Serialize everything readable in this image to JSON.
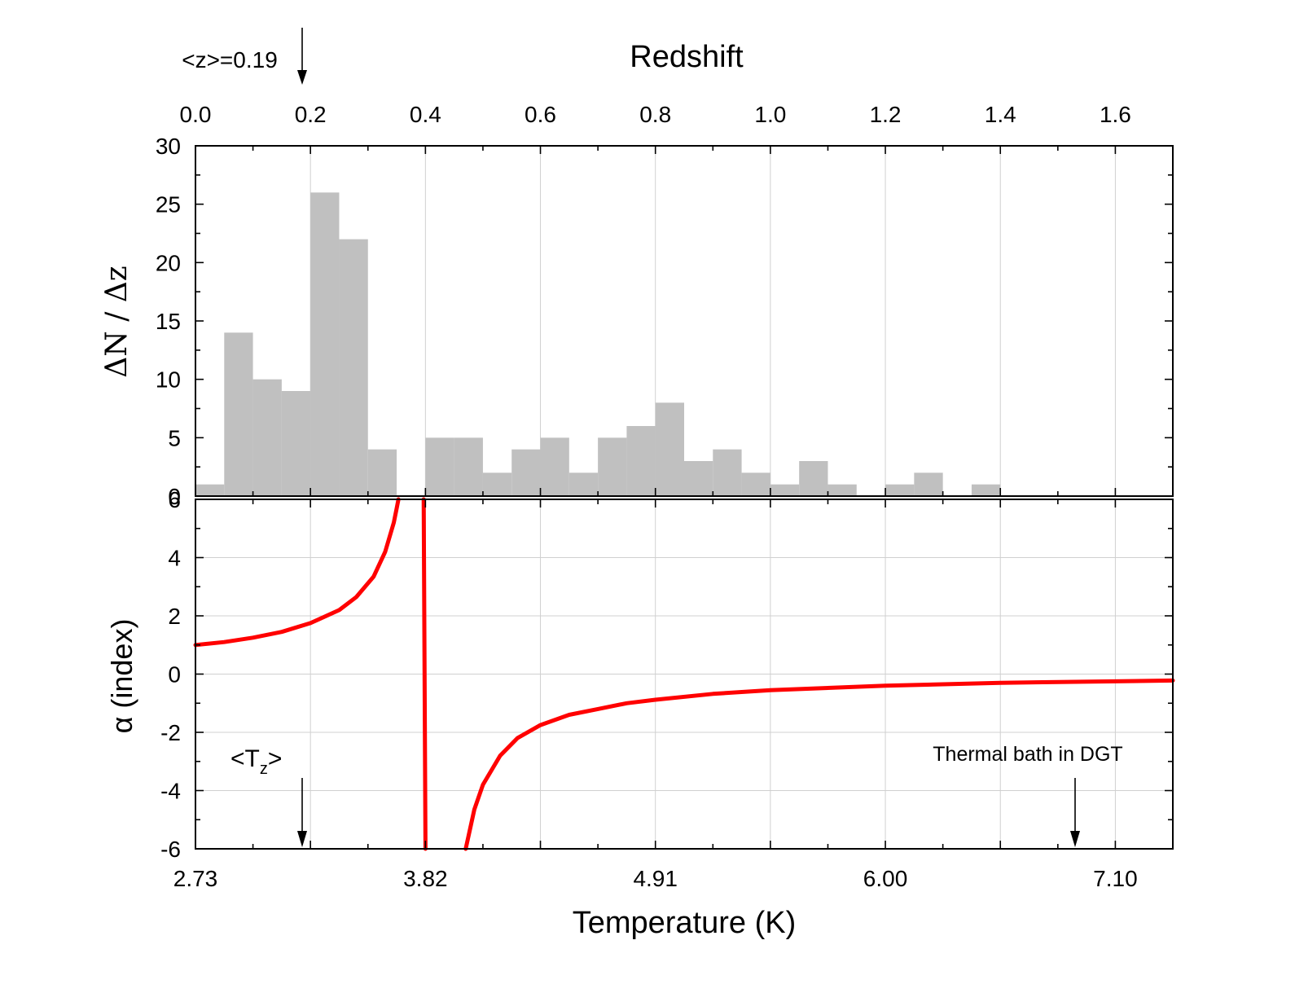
{
  "chart_data": [
    {
      "type": "bar",
      "panel": "top",
      "title": "Redshift",
      "xlabel": "Redshift",
      "ylabel": "ΔN / Δz",
      "xlim": [
        0.0,
        1.7
      ],
      "ylim": [
        0,
        30
      ],
      "bin_width": 0.05,
      "x_ticks": [
        "0.0",
        "0.2",
        "0.4",
        "0.6",
        "0.8",
        "1.0",
        "1.2",
        "1.4",
        "1.6"
      ],
      "y_ticks": [
        "0",
        "5",
        "10",
        "15",
        "20",
        "25",
        "30"
      ],
      "bins": [
        {
          "start": 0.0,
          "value": 1
        },
        {
          "start": 0.05,
          "value": 14
        },
        {
          "start": 0.1,
          "value": 10
        },
        {
          "start": 0.15,
          "value": 9
        },
        {
          "start": 0.2,
          "value": 26
        },
        {
          "start": 0.25,
          "value": 22
        },
        {
          "start": 0.3,
          "value": 4
        },
        {
          "start": 0.35,
          "value": 0
        },
        {
          "start": 0.4,
          "value": 5
        },
        {
          "start": 0.45,
          "value": 5
        },
        {
          "start": 0.5,
          "value": 2
        },
        {
          "start": 0.55,
          "value": 4
        },
        {
          "start": 0.6,
          "value": 5
        },
        {
          "start": 0.65,
          "value": 2
        },
        {
          "start": 0.7,
          "value": 5
        },
        {
          "start": 0.75,
          "value": 6
        },
        {
          "start": 0.8,
          "value": 8
        },
        {
          "start": 0.85,
          "value": 3
        },
        {
          "start": 0.9,
          "value": 4
        },
        {
          "start": 0.95,
          "value": 2
        },
        {
          "start": 1.0,
          "value": 1
        },
        {
          "start": 1.05,
          "value": 3
        },
        {
          "start": 1.1,
          "value": 1
        },
        {
          "start": 1.15,
          "value": 0
        },
        {
          "start": 1.2,
          "value": 1
        },
        {
          "start": 1.25,
          "value": 2
        },
        {
          "start": 1.3,
          "value": 0
        },
        {
          "start": 1.35,
          "value": 1
        }
      ],
      "annotation": {
        "text": "<z>=0.19",
        "x": 0.19
      }
    },
    {
      "type": "line",
      "panel": "bottom",
      "xlabel": "Temperature (K)",
      "ylabel": "α (index)",
      "ylim": [
        -6,
        6
      ],
      "x_ticks": [
        "2.73",
        "3.82",
        "4.91",
        "6.00",
        "7.10"
      ],
      "y_ticks": [
        "-6",
        "-4",
        "-2",
        "0",
        "2",
        "4",
        "6"
      ],
      "series": [
        {
          "name": "alpha",
          "color": "#ff0000",
          "segments": [
            {
              "z": [
                0.0,
                0.05,
                0.1,
                0.15,
                0.2,
                0.25,
                0.28,
                0.31,
                0.33,
                0.345,
                0.35,
                0.353
              ],
              "alpha": [
                1.0,
                1.1,
                1.25,
                1.45,
                1.75,
                2.2,
                2.65,
                3.35,
                4.2,
                5.2,
                5.7,
                6.0
              ]
            },
            {
              "z": [
                0.397,
                0.3985,
                0.4
              ],
              "alpha": [
                6.0,
                0.0,
                -6.0
              ]
            },
            {
              "z": [
                0.47,
                0.485,
                0.5,
                0.53,
                0.56,
                0.6,
                0.65,
                0.7,
                0.75,
                0.8,
                0.9,
                1.0,
                1.2,
                1.4,
                1.6,
                1.7
              ],
              "alpha": [
                -6.0,
                -4.65,
                -3.8,
                -2.8,
                -2.2,
                -1.75,
                -1.4,
                -1.2,
                -1.0,
                -0.88,
                -0.68,
                -0.55,
                -0.4,
                -0.3,
                -0.25,
                -0.22
              ]
            }
          ]
        }
      ],
      "annotations": [
        {
          "text_main": "<T",
          "text_sub": "z",
          "text_end": ">",
          "x": 0.19
        },
        {
          "text": "Thermal bath in DGT",
          "x": 1.535
        }
      ]
    }
  ]
}
